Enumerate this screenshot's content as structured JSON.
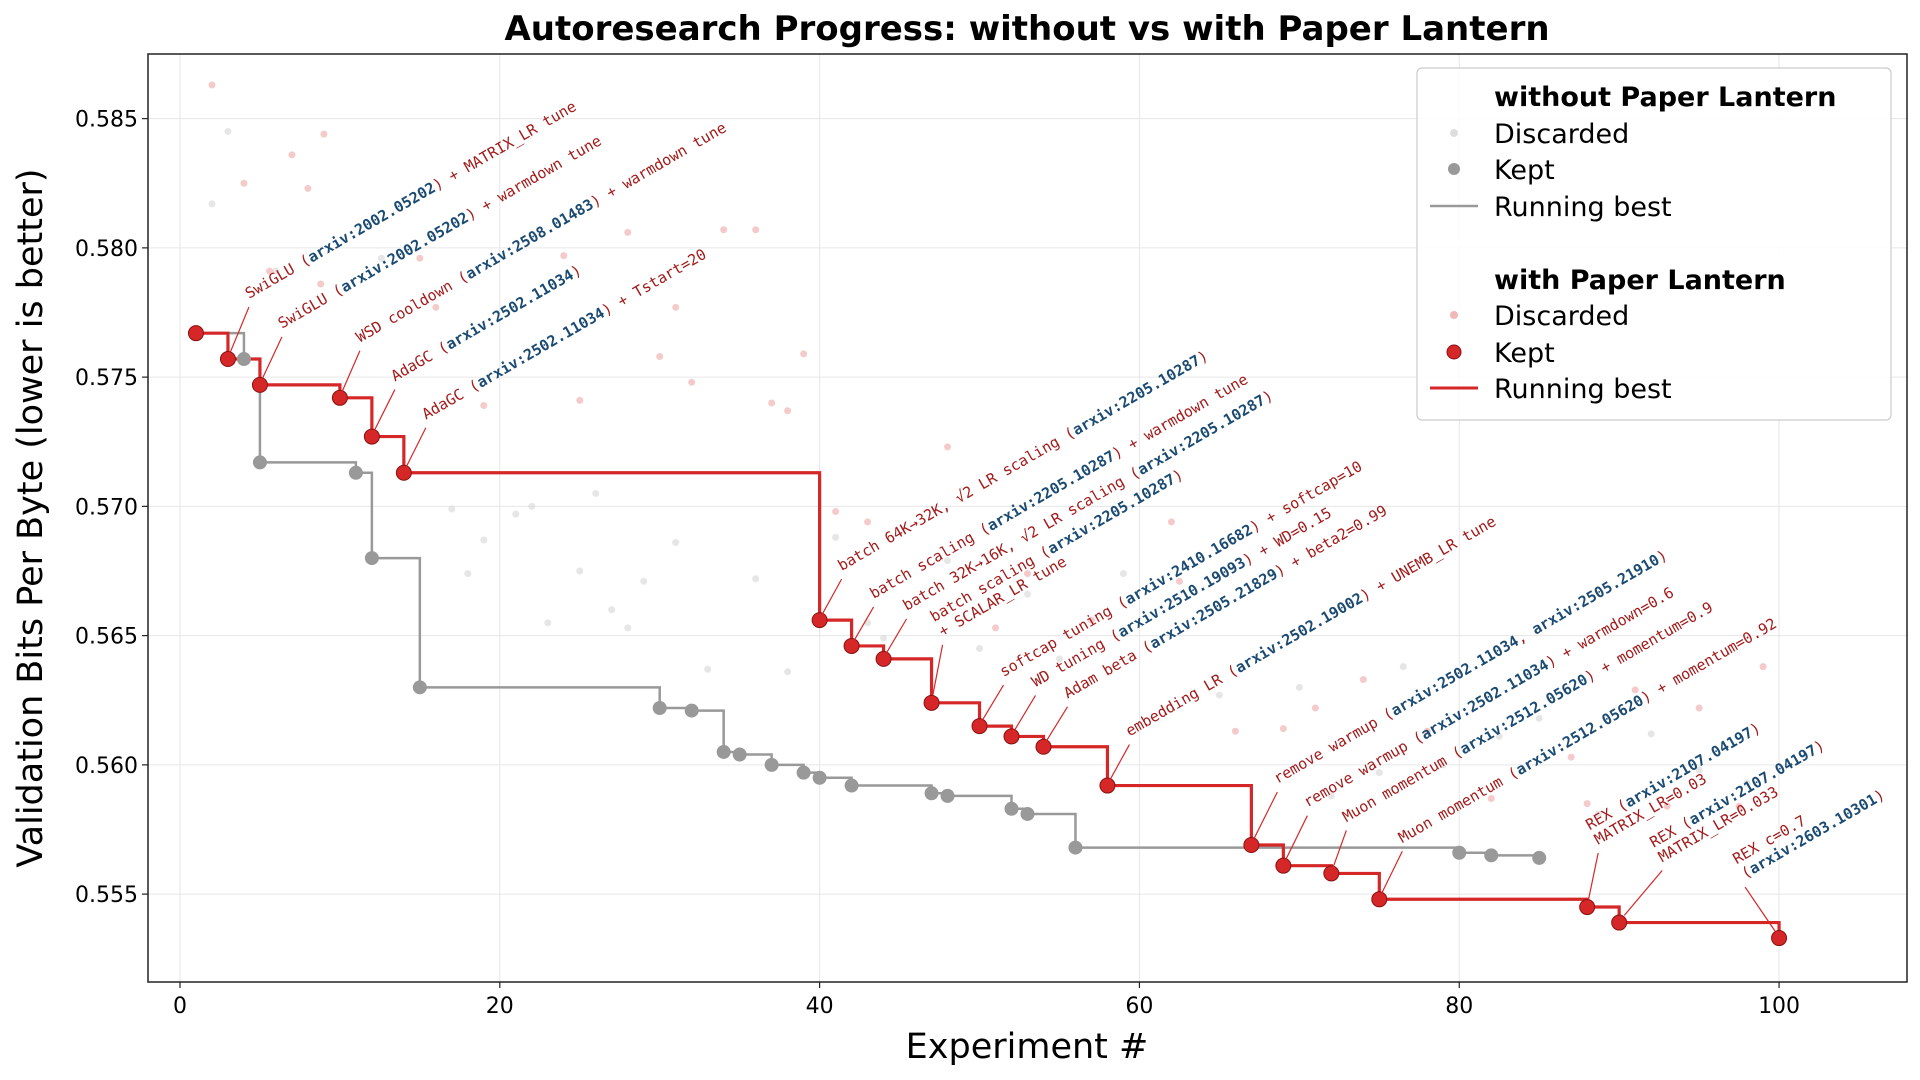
{
  "chart_data": {
    "type": "line",
    "title": "Autoresearch Progress: without vs with Paper Lantern",
    "xlabel": "Experiment #",
    "ylabel": "Validation Bits Per Byte (lower is better)",
    "xlim": [
      -2,
      108
    ],
    "ylim": [
      0.5516,
      0.5875
    ],
    "xticks": [
      0,
      20,
      40,
      60,
      80,
      100
    ],
    "yticks": [
      "0.555",
      "0.560",
      "0.565",
      "0.570",
      "0.575",
      "0.580",
      "0.585"
    ],
    "grid": true,
    "legend": "top-right",
    "series": [
      {
        "name": "without Paper Lantern",
        "color": "#999999",
        "discarded_color": "#dddddd",
        "discarded_label": "Discarded",
        "kept_label": "Kept",
        "running_best_label": "Running best",
        "discarded": [
          [
            2,
            0.5817
          ],
          [
            3,
            0.5845
          ],
          [
            6,
            0.5791
          ],
          [
            12.6,
            0.5796
          ],
          [
            17,
            0.5699
          ],
          [
            18,
            0.5674
          ],
          [
            19,
            0.5687
          ],
          [
            21,
            0.5697
          ],
          [
            22,
            0.57
          ],
          [
            23,
            0.5655
          ],
          [
            25,
            0.5675
          ],
          [
            26,
            0.5705
          ],
          [
            27,
            0.566
          ],
          [
            28,
            0.5653
          ],
          [
            29,
            0.5671
          ],
          [
            31,
            0.5686
          ],
          [
            33,
            0.5637
          ],
          [
            36,
            0.5672
          ],
          [
            38,
            0.5636
          ],
          [
            41,
            0.5688
          ],
          [
            43,
            0.5655
          ],
          [
            44,
            0.5649
          ],
          [
            48,
            0.5679
          ],
          [
            50,
            0.5645
          ],
          [
            53,
            0.5666
          ],
          [
            55,
            0.5641
          ],
          [
            59,
            0.5674
          ],
          [
            65,
            0.5627
          ],
          [
            70,
            0.563
          ],
          [
            72,
            0.5588
          ],
          [
            75,
            0.5597
          ],
          [
            76.5,
            0.5638
          ],
          [
            79,
            0.56
          ],
          [
            82.5,
            0.5611
          ],
          [
            85,
            0.5618
          ],
          [
            88.7,
            0.5581
          ],
          [
            92,
            0.5612
          ],
          [
            95,
            0.5598
          ],
          [
            98,
            0.5593
          ]
        ],
        "kept": [
          [
            1,
            0.5767
          ],
          [
            4,
            0.5757
          ],
          [
            5,
            0.5717
          ],
          [
            11,
            0.5713
          ],
          [
            12,
            0.568
          ],
          [
            15,
            0.563
          ],
          [
            30,
            0.5622
          ],
          [
            32,
            0.5621
          ],
          [
            34,
            0.5605
          ],
          [
            35,
            0.5604
          ],
          [
            37,
            0.56
          ],
          [
            39,
            0.5597
          ],
          [
            40,
            0.5595
          ],
          [
            42,
            0.5592
          ],
          [
            47,
            0.5589
          ],
          [
            48,
            0.5588
          ],
          [
            52,
            0.5583
          ],
          [
            53,
            0.5581
          ],
          [
            56,
            0.5568
          ],
          [
            80,
            0.5566
          ],
          [
            82,
            0.5565
          ],
          [
            85,
            0.5564
          ]
        ]
      },
      {
        "name": "with Paper Lantern",
        "color": "#d62728",
        "discarded_color": "#f2b8b8",
        "discarded_label": "Discarded",
        "kept_label": "Kept",
        "running_best_label": "Running best",
        "discarded": [
          [
            2,
            0.5863
          ],
          [
            4,
            0.5825
          ],
          [
            7,
            0.5836
          ],
          [
            8,
            0.5823
          ],
          [
            9,
            0.5844
          ],
          [
            5.6,
            0.5791
          ],
          [
            8.8,
            0.5786
          ],
          [
            15,
            0.5796
          ],
          [
            16,
            0.5777
          ],
          [
            19,
            0.5739
          ],
          [
            24,
            0.5797
          ],
          [
            25,
            0.5741
          ],
          [
            28,
            0.5806
          ],
          [
            30,
            0.5758
          ],
          [
            31,
            0.5777
          ],
          [
            32,
            0.5748
          ],
          [
            34,
            0.5807
          ],
          [
            36,
            0.5807
          ],
          [
            37,
            0.574
          ],
          [
            38,
            0.5737
          ],
          [
            39,
            0.5759
          ],
          [
            41,
            0.5698
          ],
          [
            43,
            0.5694
          ],
          [
            48,
            0.5723
          ],
          [
            51,
            0.5653
          ],
          [
            53,
            0.5674
          ],
          [
            57,
            0.5656
          ],
          [
            62,
            0.5694
          ],
          [
            62.5,
            0.5671
          ],
          [
            66,
            0.5613
          ],
          [
            69,
            0.5614
          ],
          [
            71,
            0.5622
          ],
          [
            74,
            0.5633
          ],
          [
            78,
            0.5613
          ],
          [
            82,
            0.5587
          ],
          [
            87,
            0.5603
          ],
          [
            88,
            0.5585
          ],
          [
            91,
            0.5629
          ],
          [
            93,
            0.5584
          ],
          [
            95,
            0.5622
          ],
          [
            97.5,
            0.5584
          ],
          [
            99,
            0.5638
          ]
        ],
        "kept": [
          [
            1,
            0.5767
          ],
          [
            3,
            0.5757
          ],
          [
            5,
            0.5747
          ],
          [
            10,
            0.5742
          ],
          [
            12,
            0.5727
          ],
          [
            14,
            0.5713
          ],
          [
            40,
            0.5656
          ],
          [
            42,
            0.5646
          ],
          [
            44,
            0.5641
          ],
          [
            47,
            0.5624
          ],
          [
            50,
            0.5615
          ],
          [
            52,
            0.5611
          ],
          [
            54,
            0.5607
          ],
          [
            58,
            0.5592
          ],
          [
            67,
            0.5569
          ],
          [
            69,
            0.5561
          ],
          [
            72,
            0.5558
          ],
          [
            75,
            0.5548
          ],
          [
            88,
            0.5545
          ],
          [
            90,
            0.5539
          ],
          [
            100,
            0.5533
          ]
        ]
      }
    ],
    "annotation_colors": {
      "text": "#a31a1a",
      "arxiv": "#1b4b72"
    },
    "annotations": [
      {
        "x": 3,
        "y": 0.5757,
        "lines": [
          "SwiGLU (arxiv:2002.05202) + MATRIX_LR tune"
        ]
      },
      {
        "x": 5,
        "y": 0.5747,
        "lines": [
          "SwiGLU (arxiv:2002.05202) + warmdown tune"
        ]
      },
      {
        "x": 10,
        "y": 0.5742,
        "lines": [
          "WSD cooldown (arxiv:2508.01483) + warmdown tune"
        ]
      },
      {
        "x": 12,
        "y": 0.5727,
        "lines": [
          "AdaGC (arxiv:2502.11034)"
        ]
      },
      {
        "x": 14,
        "y": 0.5713,
        "lines": [
          "AdaGC (arxiv:2502.11034) + Tstart=20"
        ]
      },
      {
        "x": 40,
        "y": 0.5656,
        "lines": [
          "batch 64K→32K, √2 LR scaling (arxiv:2205.10287)"
        ]
      },
      {
        "x": 42,
        "y": 0.5646,
        "lines": [
          "batch scaling (arxiv:2205.10287) + warmdown tune"
        ]
      },
      {
        "x": 44,
        "y": 0.5641,
        "lines": [
          "batch 32K→16K, √2 LR scaling (arxiv:2205.10287)"
        ]
      },
      {
        "x": 47,
        "y": 0.5624,
        "lines": [
          "batch scaling (arxiv:2205.10287)",
          "+ SCALAR_LR tune"
        ]
      },
      {
        "x": 50,
        "y": 0.5615,
        "lines": [
          "softcap tuning (arxiv:2410.16682) + softcap=10"
        ]
      },
      {
        "x": 52,
        "y": 0.5611,
        "lines": [
          "WD tuning (arxiv:2510.19093) + WD=0.15"
        ]
      },
      {
        "x": 54,
        "y": 0.5607,
        "lines": [
          "Adam beta (arxiv:2505.21829) + beta2=0.99"
        ]
      },
      {
        "x": 58,
        "y": 0.5592,
        "lines": [
          "embedding LR (arxiv:2502.19002) + UNEMB_LR tune"
        ]
      },
      {
        "x": 67,
        "y": 0.5569,
        "lines": [
          "remove warmup (arxiv:2502.11034, arxiv:2505.21910)"
        ]
      },
      {
        "x": 69,
        "y": 0.5561,
        "lines": [
          "remove warmup (arxiv:2502.11034) + warmdown=0.6"
        ]
      },
      {
        "x": 72,
        "y": 0.5558,
        "lines": [
          "Muon momentum (arxiv:2512.05620) + momentum=0.9"
        ]
      },
      {
        "x": 75,
        "y": 0.5548,
        "lines": [
          "Muon momentum (arxiv:2512.05620) + momentum=0.92"
        ]
      },
      {
        "x": 88,
        "y": 0.5545,
        "lines": [
          "REX (arxiv:2107.04197)",
          "MATRIX_LR=0.03"
        ]
      },
      {
        "x": 90,
        "y": 0.5539,
        "lines": [
          "REX (arxiv:2107.04197)",
          "MATRIX_LR=0.033"
        ]
      },
      {
        "x": 100,
        "y": 0.5533,
        "lines": [
          "REX c=0.7",
          "(arxiv:2603.10301)"
        ]
      }
    ]
  }
}
